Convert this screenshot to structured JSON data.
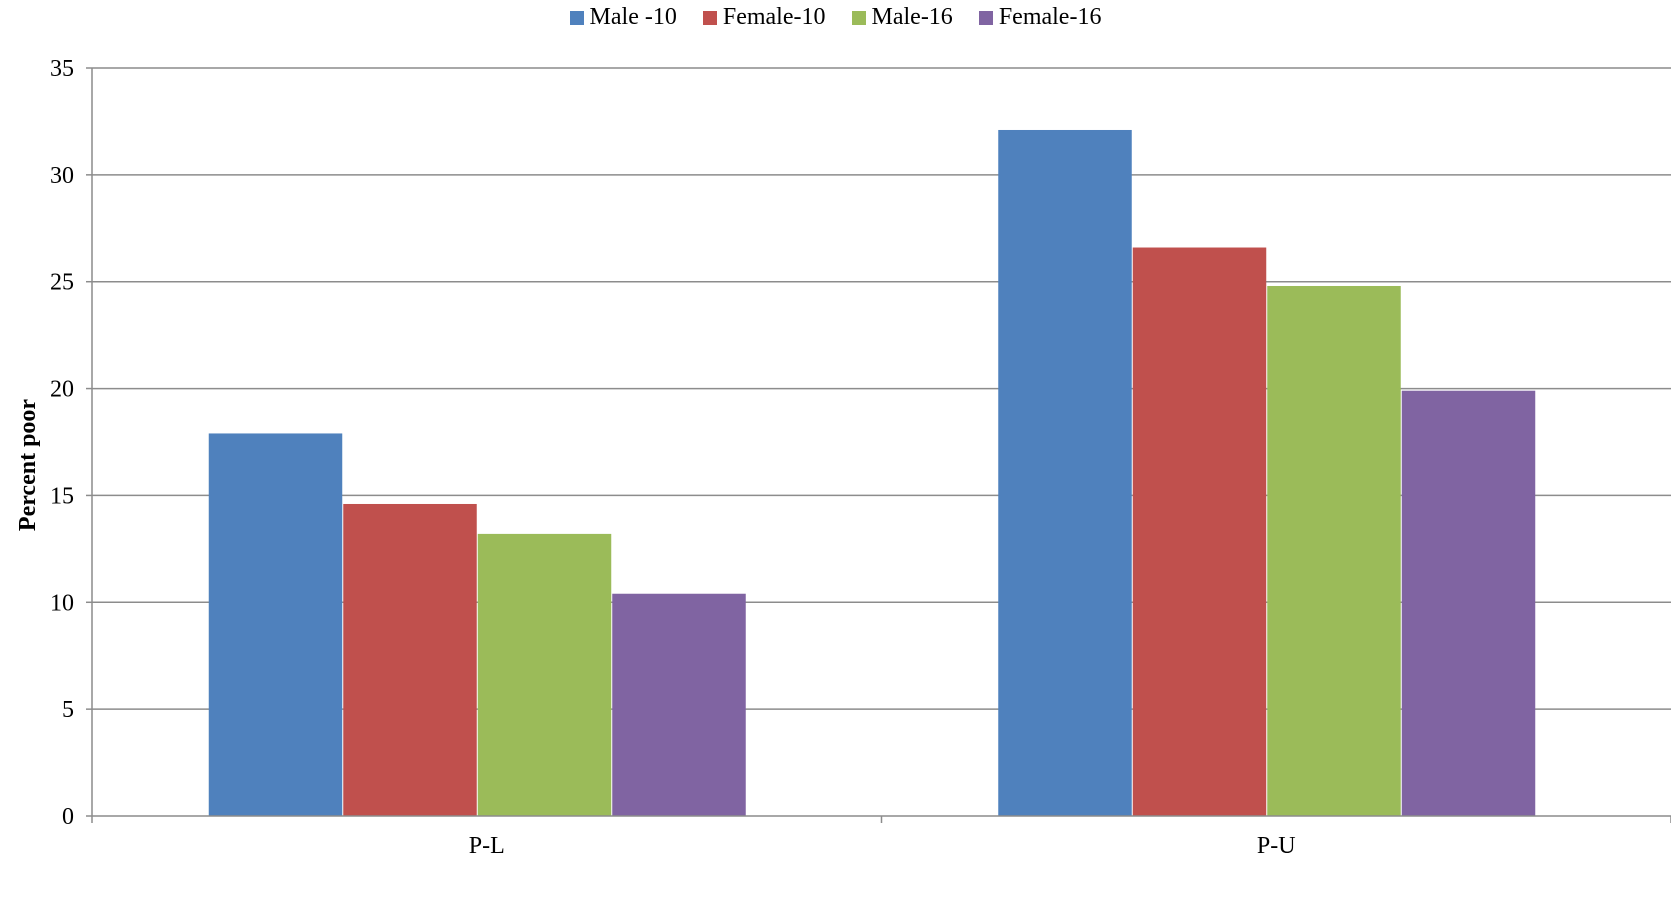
{
  "chart_data": {
    "type": "bar",
    "categories": [
      "P-L",
      "P-U"
    ],
    "series": [
      {
        "name": "Male -10",
        "color": "#4F81BD",
        "values": [
          17.9,
          32.1
        ]
      },
      {
        "name": "Female-10",
        "color": "#C0504D",
        "values": [
          14.6,
          26.6
        ]
      },
      {
        "name": "Male-16",
        "color": "#9BBB59",
        "values": [
          13.2,
          24.8
        ]
      },
      {
        "name": "Female-16",
        "color": "#8064A2",
        "values": [
          10.4,
          19.9
        ]
      }
    ],
    "title": "",
    "xlabel": "",
    "ylabel": "Percent poor",
    "ylim": [
      0,
      35
    ],
    "yticks": [
      0,
      5,
      10,
      15,
      20,
      25,
      30,
      35
    ],
    "grid": true,
    "legend_position": "top"
  }
}
